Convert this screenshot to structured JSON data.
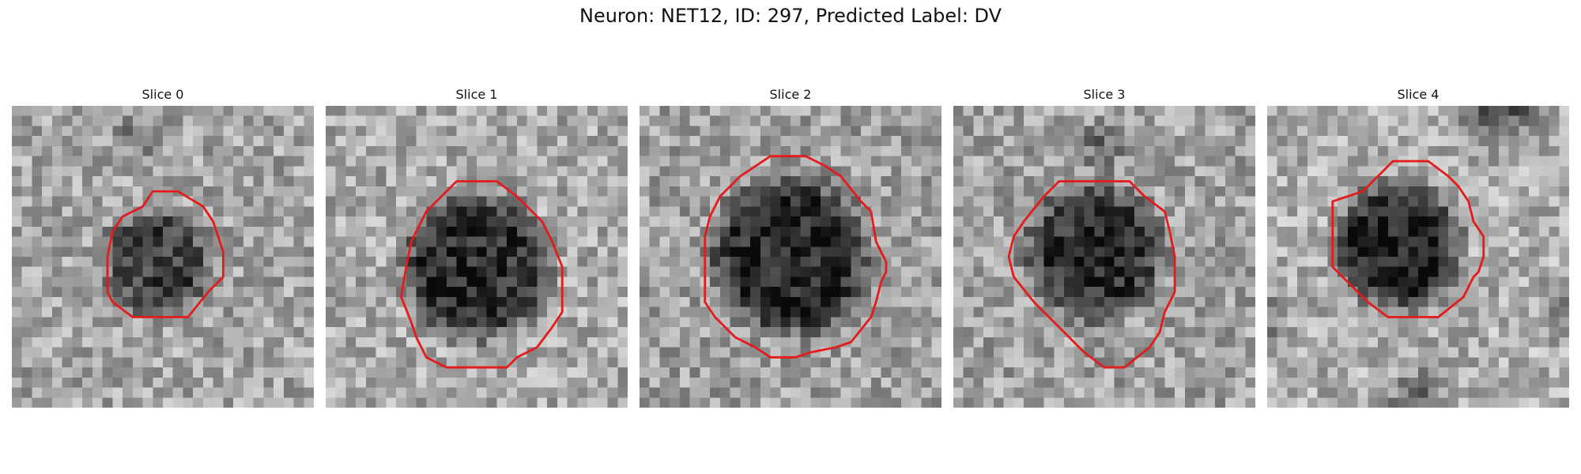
{
  "figure": {
    "title": "Neuron: NET12, ID: 297, Predicted Label: DV",
    "contour_color": "#e51a1a",
    "image_colormap": "gray"
  },
  "slices": [
    {
      "title": "Slice 0"
    },
    {
      "title": "Slice 1"
    },
    {
      "title": "Slice 2"
    },
    {
      "title": "Slice 3"
    },
    {
      "title": "Slice 4"
    }
  ]
}
